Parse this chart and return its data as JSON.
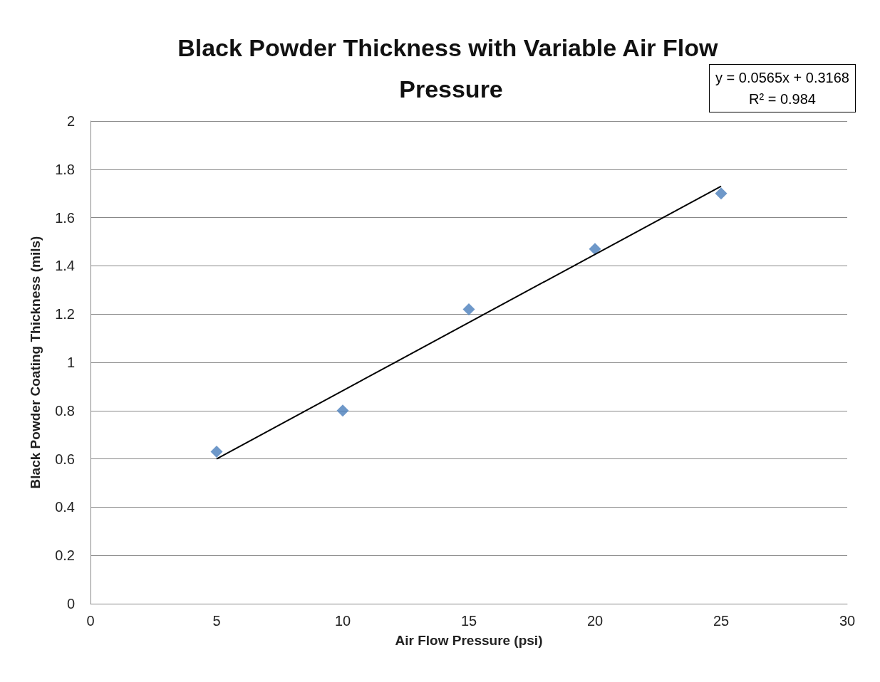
{
  "chart_data": {
    "type": "scatter",
    "title": "Black Powder Thickness with Variable Air Flow Pressure",
    "xlabel": "Air Flow Pressure (psi)",
    "ylabel": "Black Powder Coating Thickness (mils)",
    "annotations": [
      "y = 0.0565x + 0.3168",
      "R² = 0.984"
    ],
    "x": [
      5,
      10,
      15,
      20,
      25
    ],
    "series": [
      {
        "color": "#4a7ebb",
        "values": [
          0.63,
          0.8,
          1.22,
          1.47,
          1.7
        ]
      },
      {
        "type": "line",
        "marker": "none",
        "color": "#000000",
        "x": [
          5,
          25
        ],
        "values": [
          0.6,
          1.73
        ]
      }
    ],
    "xlim": [
      0,
      30
    ],
    "xticks": [
      0,
      5,
      10,
      15,
      20,
      25,
      30
    ],
    "ylim": [
      0,
      2
    ],
    "yticks": [
      0,
      0.2,
      0.4,
      0.6,
      0.8,
      1,
      1.2,
      1.4,
      1.6,
      1.8,
      2
    ],
    "grid": "y",
    "marker": "diamond"
  }
}
